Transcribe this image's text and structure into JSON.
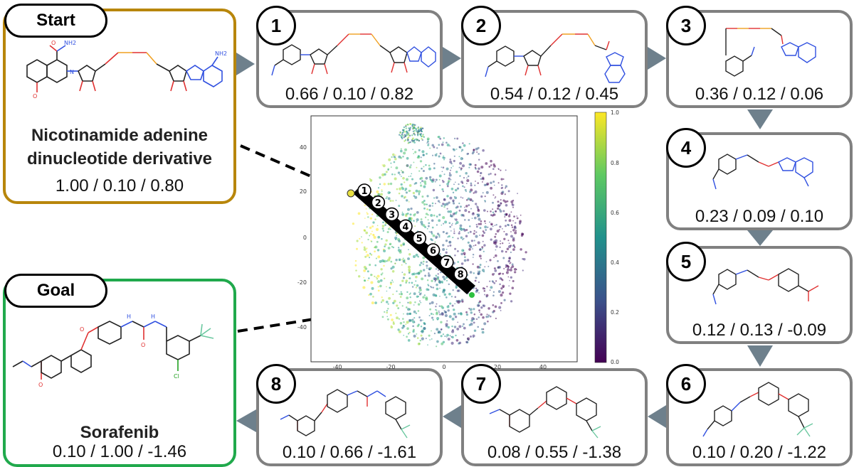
{
  "start": {
    "tag": "Start",
    "name_line1": "Nicotinamide adenine",
    "name_line2": "dinucleotide derivative",
    "score": "1.00 / 0.10 / 0.80"
  },
  "goal": {
    "tag": "Goal",
    "name": "Sorafenib",
    "score": "0.10 / 1.00 / -1.46"
  },
  "steps": [
    {
      "num": "1",
      "score": "0.66 / 0.10 / 0.82"
    },
    {
      "num": "2",
      "score": "0.54 / 0.12 / 0.45"
    },
    {
      "num": "3",
      "score": "0.36 / 0.12 / 0.06"
    },
    {
      "num": "4",
      "score": "0.23 / 0.09 / 0.10"
    },
    {
      "num": "5",
      "score": "0.12 / 0.13 / -0.09"
    },
    {
      "num": "6",
      "score": "0.10 / 0.20 / -1.22"
    },
    {
      "num": "7",
      "score": "0.08 / 0.55 / -1.38"
    },
    {
      "num": "8",
      "score": "0.10 / 0.66 / -1.61"
    }
  ],
  "plot": {
    "x_ticks": [
      "-40",
      "-20",
      "0",
      "20",
      "40"
    ],
    "y_ticks": [
      "40",
      "20",
      "0",
      "-20",
      "-40"
    ],
    "colorbar_ticks": [
      "1.0",
      "0.8",
      "0.6",
      "0.4",
      "0.2",
      "0.0"
    ],
    "path_markers": [
      "1",
      "2",
      "3",
      "4",
      "5",
      "6",
      "7",
      "8"
    ]
  },
  "colors": {
    "start_border": "#b8860b",
    "goal_border": "#20a94c",
    "box_border": "#808080",
    "arrow": "#6e808c"
  }
}
